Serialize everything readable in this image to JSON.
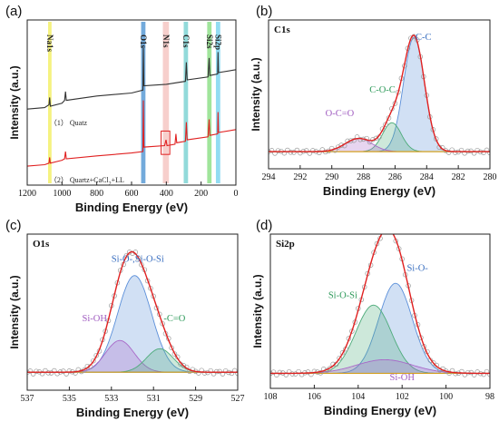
{
  "chart_data": [
    {
      "panel": "(a)",
      "type": "line",
      "xlabel": "Binding Energy (eV)",
      "ylabel": "Intensity (a.u.)",
      "xlim": [
        1200,
        0
      ],
      "xticks": [
        1200,
        1000,
        800,
        600,
        400,
        200,
        0
      ],
      "bands": [
        {
          "label": "Na1s",
          "x1": 1080,
          "x2": 1060,
          "color": "#f3f06a"
        },
        {
          "label": "O1s",
          "x1": 545,
          "x2": 520,
          "color": "#5b9bd5"
        },
        {
          "label": "N1s",
          "x1": 420,
          "x2": 385,
          "color": "#f6c7c3"
        },
        {
          "label": "C1s",
          "x1": 300,
          "x2": 275,
          "color": "#7fd3d3"
        },
        {
          "label": "Si2s",
          "x1": 165,
          "x2": 140,
          "color": "#8fe08a"
        },
        {
          "label": "Si2p",
          "x1": 115,
          "x2": 90,
          "color": "#7fd6f0"
        }
      ],
      "series": [
        {
          "name": "（1） Quatz",
          "color": "#333333",
          "points": [
            [
              1200,
              0.44
            ],
            [
              1100,
              0.45
            ],
            [
              1075,
              0.47
            ],
            [
              1071,
              0.52
            ],
            [
              1067,
              0.46
            ],
            [
              1000,
              0.48
            ],
            [
              985,
              0.5
            ],
            [
              980,
              0.56
            ],
            [
              975,
              0.5
            ],
            [
              800,
              0.53
            ],
            [
              600,
              0.55
            ],
            [
              535,
              0.57
            ],
            [
              532,
              0.86
            ],
            [
              529,
              0.6
            ],
            [
              400,
              0.61
            ],
            [
              290,
              0.63
            ],
            [
              285,
              0.76
            ],
            [
              280,
              0.64
            ],
            [
              160,
              0.66
            ],
            [
              154,
              0.79
            ],
            [
              150,
              0.67
            ],
            [
              105,
              0.68
            ],
            [
              103,
              0.83
            ],
            [
              100,
              0.69
            ],
            [
              0,
              0.71
            ]
          ]
        },
        {
          "name": "（2） Quartz+CaCl2+LL",
          "color": "#e02020",
          "points": [
            [
              1200,
              0.05
            ],
            [
              1100,
              0.06
            ],
            [
              1075,
              0.07
            ],
            [
              1071,
              0.11
            ],
            [
              1067,
              0.07
            ],
            [
              1000,
              0.09
            ],
            [
              985,
              0.1
            ],
            [
              980,
              0.15
            ],
            [
              975,
              0.1
            ],
            [
              800,
              0.12
            ],
            [
              600,
              0.14
            ],
            [
              535,
              0.15
            ],
            [
              532,
              0.5
            ],
            [
              529,
              0.18
            ],
            [
              410,
              0.19
            ],
            [
              402,
              0.23
            ],
            [
              396,
              0.19
            ],
            [
              350,
              0.2
            ],
            [
              345,
              0.27
            ],
            [
              340,
              0.21
            ],
            [
              290,
              0.22
            ],
            [
              285,
              0.35
            ],
            [
              280,
              0.23
            ],
            [
              160,
              0.25
            ],
            [
              154,
              0.37
            ],
            [
              150,
              0.26
            ],
            [
              105,
              0.27
            ],
            [
              103,
              0.42
            ],
            [
              100,
              0.28
            ],
            [
              0,
              0.3
            ]
          ]
        }
      ]
    },
    {
      "panel": "(b)",
      "title": "C1s",
      "type": "line",
      "xlabel": "Binding Energy (eV)",
      "ylabel": "Intensity (a.u.)",
      "xlim": [
        294,
        280
      ],
      "xticks": [
        294,
        292,
        290,
        288,
        286,
        284,
        282,
        280
      ],
      "baseline": 0.05,
      "peaks": [
        {
          "label": "C-C",
          "center": 284.8,
          "height": 0.87,
          "fwhm": 1.55,
          "color": "#5b8fd9"
        },
        {
          "label": "C-O-C",
          "center": 286.2,
          "height": 0.22,
          "fwhm": 1.4,
          "color": "#4dab7a"
        },
        {
          "label": "O-C=O",
          "center": 288.3,
          "height": 0.1,
          "fwhm": 2.0,
          "color": "#a868c8"
        }
      ],
      "fit_color": "#e02020",
      "annotations": [
        {
          "text": "C-C",
          "x": 284.2,
          "y": 0.9,
          "color": "#3a6fc0"
        },
        {
          "text": "C-O-C",
          "x": 286.8,
          "y": 0.5,
          "color": "#2e9a5a"
        },
        {
          "text": "O-C=O",
          "x": 289.5,
          "y": 0.32,
          "color": "#a05cc0"
        }
      ]
    },
    {
      "panel": "(c)",
      "title": "O1s",
      "type": "line",
      "xlabel": "Binding Energy (eV)",
      "ylabel": "Intensity (a.u.)",
      "xlim": [
        537,
        527
      ],
      "xticks": [
        537,
        535,
        533,
        531,
        529,
        527
      ],
      "baseline": 0.05,
      "peaks": [
        {
          "label": "Si-O-,Si-O-Si",
          "center": 531.9,
          "height": 0.7,
          "fwhm": 1.9,
          "color": "#5b8fd9"
        },
        {
          "label": "Si-OH",
          "center": 532.6,
          "height": 0.23,
          "fwhm": 1.6,
          "color": "#a868c8"
        },
        {
          "label": "-C=O",
          "center": 530.7,
          "height": 0.17,
          "fwhm": 1.5,
          "color": "#4dab7a"
        }
      ],
      "fit_color": "#e02020",
      "annotations": [
        {
          "text": "Si-O-,Si-O-Si",
          "x": 531.75,
          "y": 0.85,
          "color": "#3a6fc0"
        },
        {
          "text": "Si-OH",
          "x": 533.8,
          "y": 0.42,
          "color": "#a05cc0"
        },
        {
          "text": "-C=O",
          "x": 530.0,
          "y": 0.42,
          "color": "#2e9a5a"
        }
      ]
    },
    {
      "panel": "(d)",
      "title": "Si2p",
      "type": "line",
      "xlabel": "Binding Energy (eV)",
      "ylabel": "Intensity (a.u.)",
      "xlim": [
        108,
        98
      ],
      "xticks": [
        108,
        106,
        104,
        102,
        100,
        98
      ],
      "baseline": 0.03,
      "peaks": [
        {
          "label": "Si-O-",
          "center": 102.3,
          "height": 0.66,
          "fwhm": 1.8,
          "color": "#5b8fd9"
        },
        {
          "label": "Si-O-Si",
          "center": 103.3,
          "height": 0.5,
          "fwhm": 1.9,
          "color": "#4dab7a"
        },
        {
          "label": "Si-OH",
          "center": 102.8,
          "height": 0.1,
          "fwhm": 3.0,
          "color": "#a868c8"
        }
      ],
      "fit_color": "#e02020",
      "annotations": [
        {
          "text": "Si-O-",
          "x": 101.3,
          "y": 0.78,
          "color": "#3a6fc0"
        },
        {
          "text": "Si-O-Si",
          "x": 104.7,
          "y": 0.58,
          "color": "#2e9a5a"
        },
        {
          "text": "Si-OH",
          "x": 102.0,
          "y": -0.02,
          "color": "#a05cc0"
        }
      ]
    }
  ]
}
